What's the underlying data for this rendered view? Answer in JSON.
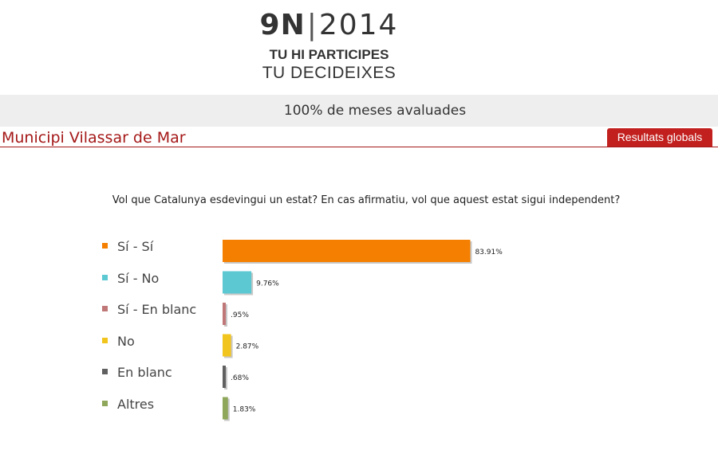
{
  "header": {
    "logo_bold": "9N",
    "logo_separator": "|",
    "logo_year": "2014",
    "tagline_1": "TU HI PARTICIPES",
    "tagline_2": "TU DECIDEIXES"
  },
  "status": {
    "progress_text": "100% de meses avaluades"
  },
  "municipality": {
    "title": "Municipi Vilassar de Mar",
    "global_results_button": "Resultats globals"
  },
  "colors": {
    "accent": "#a51818",
    "button": "#c1201e"
  },
  "chart_data": {
    "type": "bar",
    "orientation": "horizontal",
    "title": "Vol que Catalunya esdevingui un estat? En cas afirmatiu, vol que aquest estat sigui independent?",
    "xlabel": "",
    "ylabel": "",
    "xlim": [
      0,
      100
    ],
    "grid": false,
    "legend_placement": "left",
    "categories": [
      "Sí - Sí",
      "Sí - No",
      "Sí - En blanc",
      "No",
      "En blanc",
      "Altres"
    ],
    "values": [
      83.91,
      9.76,
      0.95,
      2.87,
      0.68,
      1.83
    ],
    "value_labels": [
      "83.91%",
      "9.76%",
      ".95%",
      "2.87%",
      ".68%",
      "1.83%"
    ],
    "colors": [
      "#f57f00",
      "#5bc8d2",
      "#c07777",
      "#f2c51e",
      "#606060",
      "#8ea75a"
    ]
  }
}
